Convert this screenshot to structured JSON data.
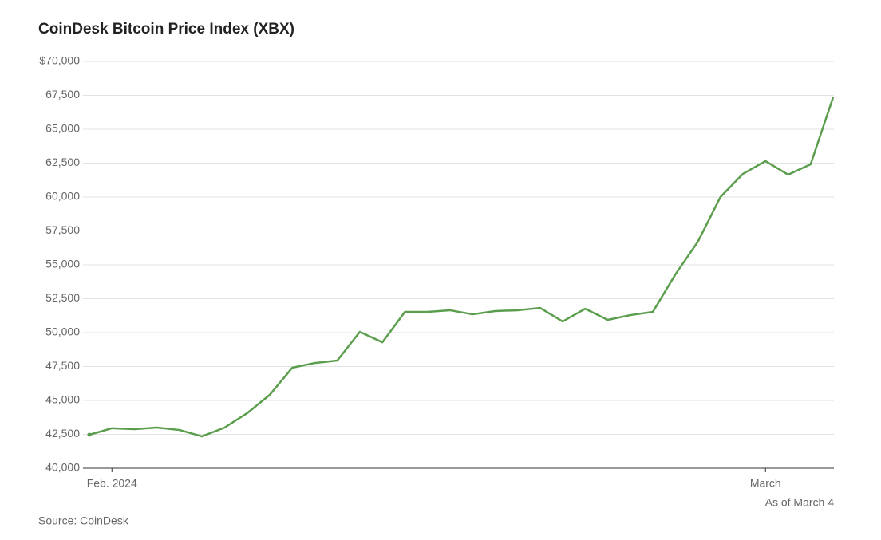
{
  "chart_data": {
    "type": "line",
    "title": "CoinDesk Bitcoin Price Index (XBX)",
    "source": "Source: CoinDesk",
    "annotation": "As of March 4",
    "categories": [
      null,
      "Feb. 2024",
      null,
      null,
      null,
      null,
      null,
      null,
      null,
      null,
      null,
      null,
      null,
      null,
      null,
      null,
      null,
      null,
      null,
      null,
      null,
      null,
      null,
      null,
      null,
      null,
      null,
      null,
      null,
      null,
      "March",
      null,
      null,
      null
    ],
    "values": [
      42470,
      42950,
      42880,
      43000,
      42820,
      42350,
      43000,
      44060,
      45410,
      47410,
      47760,
      47940,
      50060,
      49290,
      51530,
      51530,
      51650,
      51350,
      51590,
      51650,
      51820,
      50820,
      51760,
      50940,
      51290,
      51530,
      54290,
      56710,
      60000,
      61710,
      62650,
      61650,
      62410,
      67350
    ],
    "color": "#5b9e4d",
    "ylim": [
      40000,
      70000
    ],
    "yticks": [
      {
        "value": 40000,
        "label": "40,000"
      },
      {
        "value": 42500,
        "label": "42,500"
      },
      {
        "value": 45000,
        "label": "45,000"
      },
      {
        "value": 47500,
        "label": "47,500"
      },
      {
        "value": 50000,
        "label": "50,000"
      },
      {
        "value": 52500,
        "label": "52,500"
      },
      {
        "value": 55000,
        "label": "55,000"
      },
      {
        "value": 57500,
        "label": "57,500"
      },
      {
        "value": 60000,
        "label": "60,000"
      },
      {
        "value": 62500,
        "label": "62,500"
      },
      {
        "value": 65000,
        "label": "65,000"
      },
      {
        "value": 67500,
        "label": "67,500"
      },
      {
        "value": 70000,
        "label": "$70,000"
      }
    ],
    "grid": true
  }
}
